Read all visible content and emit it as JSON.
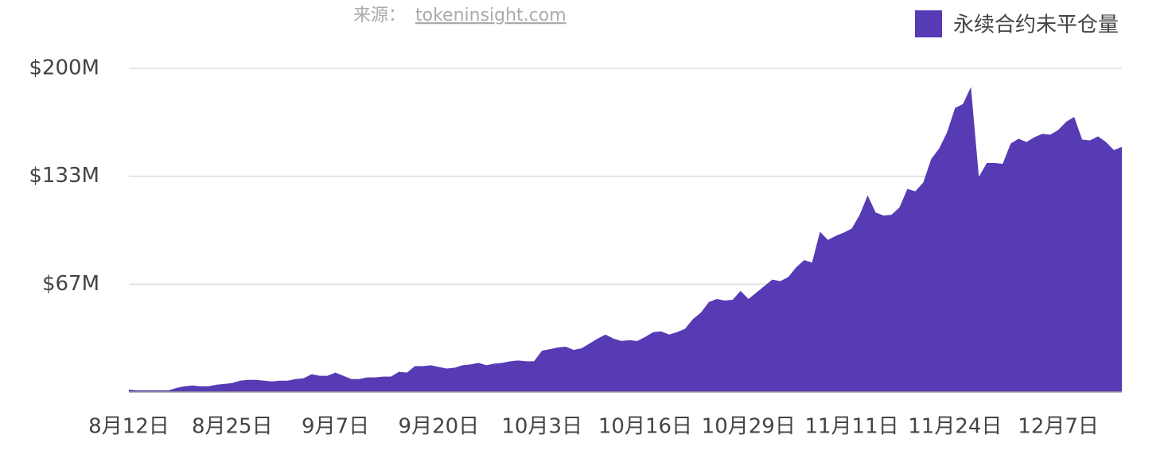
{
  "chart_data": {
    "type": "area",
    "source": "来源：",
    "source_link": "tokeninsight.com",
    "categories": [
      "8月12日",
      null,
      null,
      null,
      null,
      null,
      null,
      null,
      null,
      null,
      null,
      null,
      null,
      "8月25日",
      null,
      null,
      null,
      null,
      null,
      null,
      null,
      null,
      null,
      null,
      null,
      null,
      "9月7日",
      null,
      null,
      null,
      null,
      null,
      null,
      null,
      null,
      null,
      null,
      null,
      null,
      "9月20日",
      null,
      null,
      null,
      null,
      null,
      null,
      null,
      null,
      null,
      null,
      null,
      null,
      "10月3日",
      null,
      null,
      null,
      null,
      null,
      null,
      null,
      null,
      null,
      null,
      null,
      null,
      "10月16日",
      null,
      null,
      null,
      null,
      null,
      null,
      null,
      null,
      null,
      null,
      null,
      null,
      "10月29日",
      null,
      null,
      null,
      null,
      null,
      null,
      null,
      null,
      null,
      null,
      null,
      null,
      "11月11日",
      null,
      null,
      null,
      null,
      null,
      null,
      null,
      null,
      null,
      null,
      null,
      null,
      "11月24日",
      null,
      null,
      null,
      null,
      null,
      null,
      null,
      null,
      null,
      null,
      null,
      null,
      "12月7日",
      null,
      null,
      null,
      null,
      null,
      null,
      null,
      null
    ],
    "series": [
      {
        "name": "永续合约未平仓量",
        "color": "#563bb5",
        "values": [
          1.5,
          1,
          1,
          1,
          1,
          1,
          2.5,
          3.5,
          4,
          3.5,
          3.5,
          4.5,
          5,
          5.5,
          7,
          7.5,
          7.5,
          7,
          6.5,
          7,
          7,
          8,
          8.5,
          11,
          10,
          10,
          12,
          10,
          8,
          8,
          9,
          9,
          9.5,
          9.5,
          12.5,
          12,
          16,
          16,
          16.5,
          15.5,
          14.5,
          15,
          16.5,
          17,
          18,
          16.5,
          17.5,
          18,
          19,
          19.5,
          19,
          19,
          25.5,
          26.5,
          27.5,
          28,
          26,
          27,
          30,
          33,
          35.5,
          33,
          31.5,
          32,
          31.5,
          34,
          37,
          37.5,
          35.5,
          37,
          39,
          45,
          49,
          55.5,
          57.5,
          56.5,
          57,
          62.5,
          57.5,
          61.5,
          65.5,
          69.5,
          68.5,
          71,
          77,
          81.5,
          80,
          99,
          94,
          96.5,
          98.5,
          101,
          109.5,
          121.5,
          111,
          109,
          109.5,
          114,
          125.5,
          124,
          129.5,
          144,
          150.5,
          160.5,
          175.5,
          178,
          188.5,
          133,
          141.5,
          141.5,
          141,
          153.5,
          156.5,
          154.5,
          157.5,
          159.5,
          159,
          162,
          167,
          170,
          156,
          155.5,
          158,
          154.5,
          149.5,
          151.5
        ]
      }
    ],
    "ylim": [
      0,
      200
    ],
    "yticks": [
      {
        "value": 66.7,
        "label": "$67M"
      },
      {
        "value": 133.3,
        "label": "$133M"
      },
      {
        "value": 200,
        "label": "$200M"
      }
    ],
    "grid": true
  }
}
